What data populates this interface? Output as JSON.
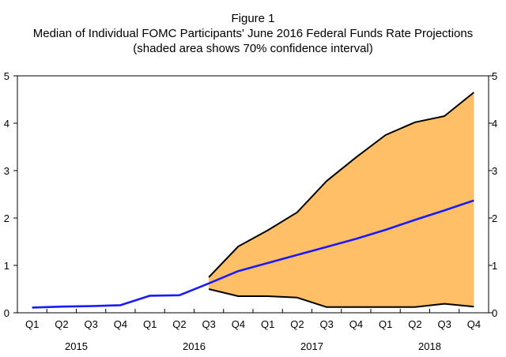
{
  "chart_data": {
    "type": "area",
    "title": "Figure 1",
    "subtitle": "Median of Individual FOMC Participants' June 2016 Federal Funds Rate Projections",
    "note": "(shaded area shows 70% confidence interval)",
    "xlabel": "",
    "ylabel": "",
    "ylim": [
      0,
      5
    ],
    "yticks": [
      0,
      1,
      2,
      3,
      4,
      5
    ],
    "grid": false,
    "legend": "none",
    "quarters": [
      "Q1",
      "Q2",
      "Q3",
      "Q4",
      "Q1",
      "Q2",
      "Q3",
      "Q4",
      "Q1",
      "Q2",
      "Q3",
      "Q4",
      "Q1",
      "Q2",
      "Q3",
      "Q4"
    ],
    "years": [
      "2015",
      "2016",
      "2017",
      "2018"
    ],
    "x": [
      "2015Q1",
      "2015Q2",
      "2015Q3",
      "2015Q4",
      "2016Q1",
      "2016Q2",
      "2016Q3",
      "2016Q4",
      "2017Q1",
      "2017Q2",
      "2017Q3",
      "2017Q4",
      "2018Q1",
      "2018Q2",
      "2018Q3",
      "2018Q4"
    ],
    "series": [
      {
        "role": "median",
        "color": "#1a1aff",
        "values": [
          0.11,
          0.13,
          0.14,
          0.16,
          0.36,
          0.37,
          0.62,
          0.88,
          1.05,
          1.22,
          1.39,
          1.56,
          1.75,
          1.96,
          2.16,
          2.37
        ]
      },
      {
        "role": "upper",
        "color": "#000000",
        "values": [
          null,
          null,
          null,
          null,
          null,
          null,
          0.75,
          1.4,
          1.74,
          2.12,
          2.78,
          3.28,
          3.75,
          4.02,
          4.15,
          4.65
        ]
      },
      {
        "role": "lower",
        "color": "#000000",
        "values": [
          null,
          null,
          null,
          null,
          null,
          null,
          0.5,
          0.35,
          0.35,
          0.32,
          0.12,
          0.12,
          0.12,
          0.12,
          0.19,
          0.13
        ]
      }
    ],
    "band_color": "#ffbf66"
  }
}
